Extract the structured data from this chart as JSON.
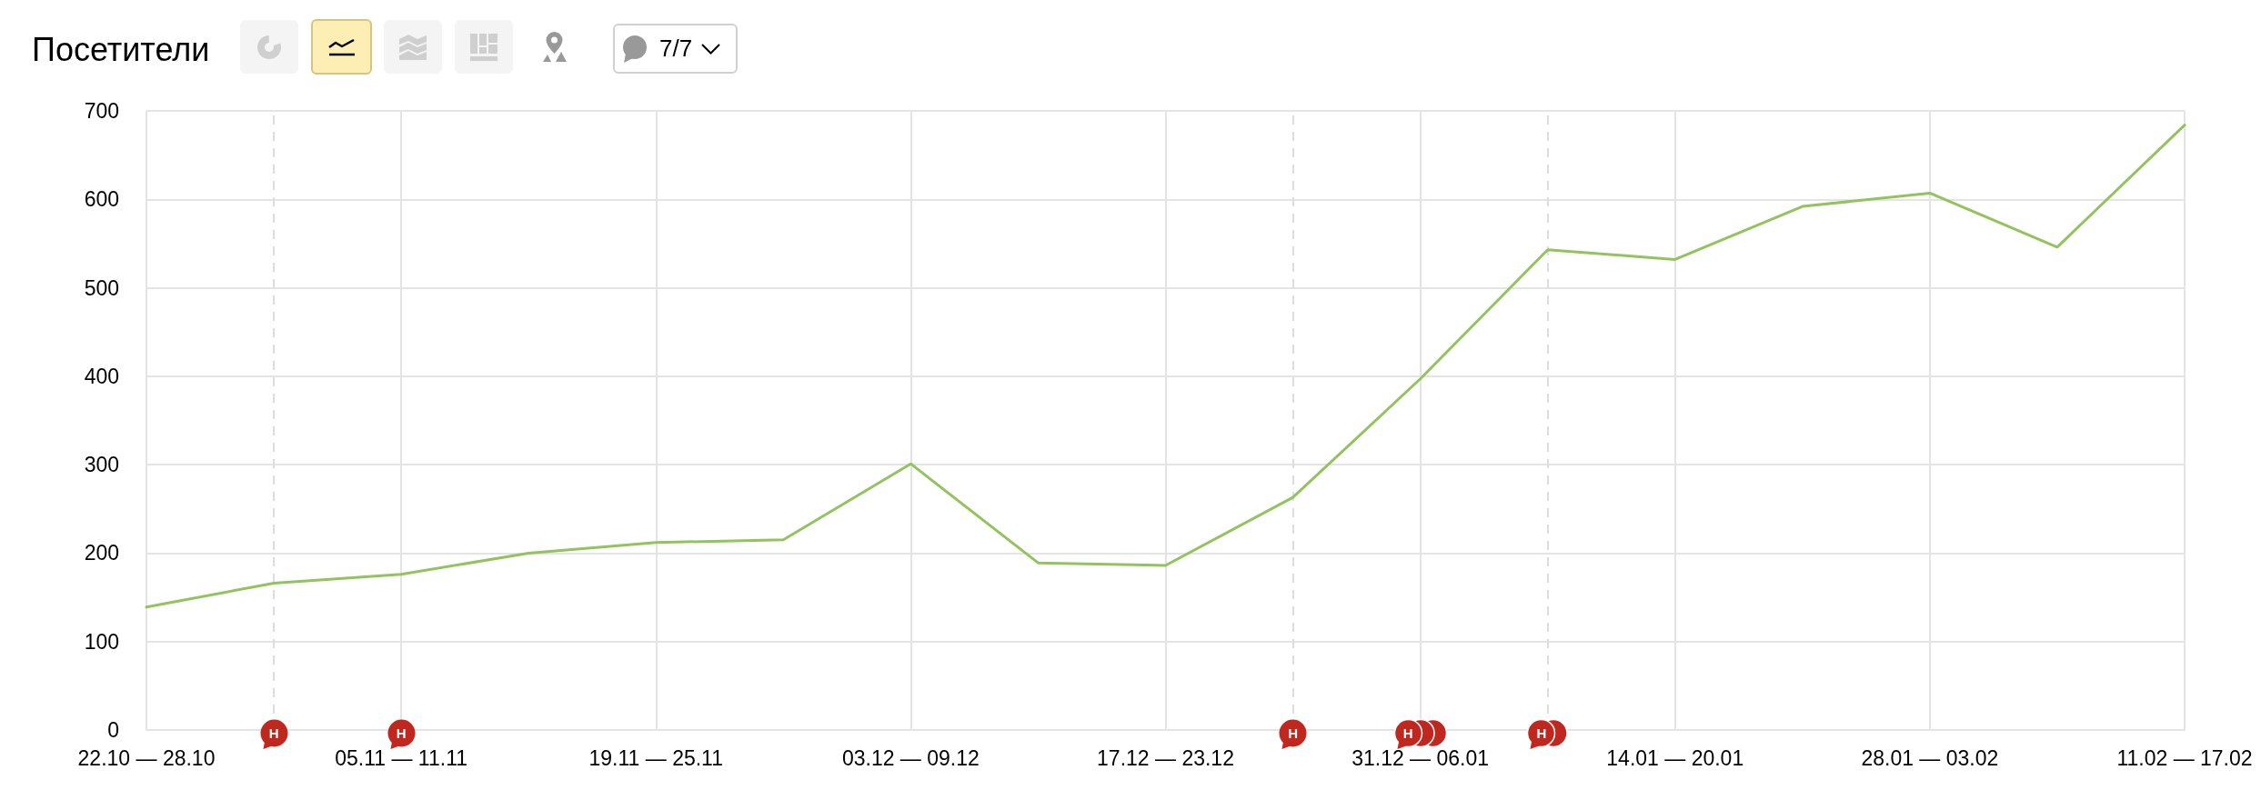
{
  "chart_data": {
    "type": "line",
    "title": "Посетители",
    "categories": [
      "22.10 — 28.10",
      null,
      "05.11 — 11.11",
      null,
      "19.11 — 25.11",
      null,
      "03.12 — 09.12",
      null,
      "17.12 — 23.12",
      null,
      "31.12 — 06.01",
      null,
      "14.01 — 20.01",
      null,
      "28.01 — 03.02",
      null,
      "11.02 — 17.02"
    ],
    "values": [
      139,
      166,
      176,
      200,
      212,
      215,
      301,
      189,
      186,
      263,
      397,
      543,
      532,
      592,
      607,
      546,
      684
    ],
    "color": "#93c35f",
    "marker": "none",
    "ylim": [
      0,
      700
    ],
    "yticks": [
      0,
      100,
      200,
      300,
      400,
      500,
      600,
      700
    ],
    "grid": true,
    "annotations": [
      "7/7",
      "Н",
      "Н",
      "Н",
      "Н",
      "Н"
    ]
  }
}
